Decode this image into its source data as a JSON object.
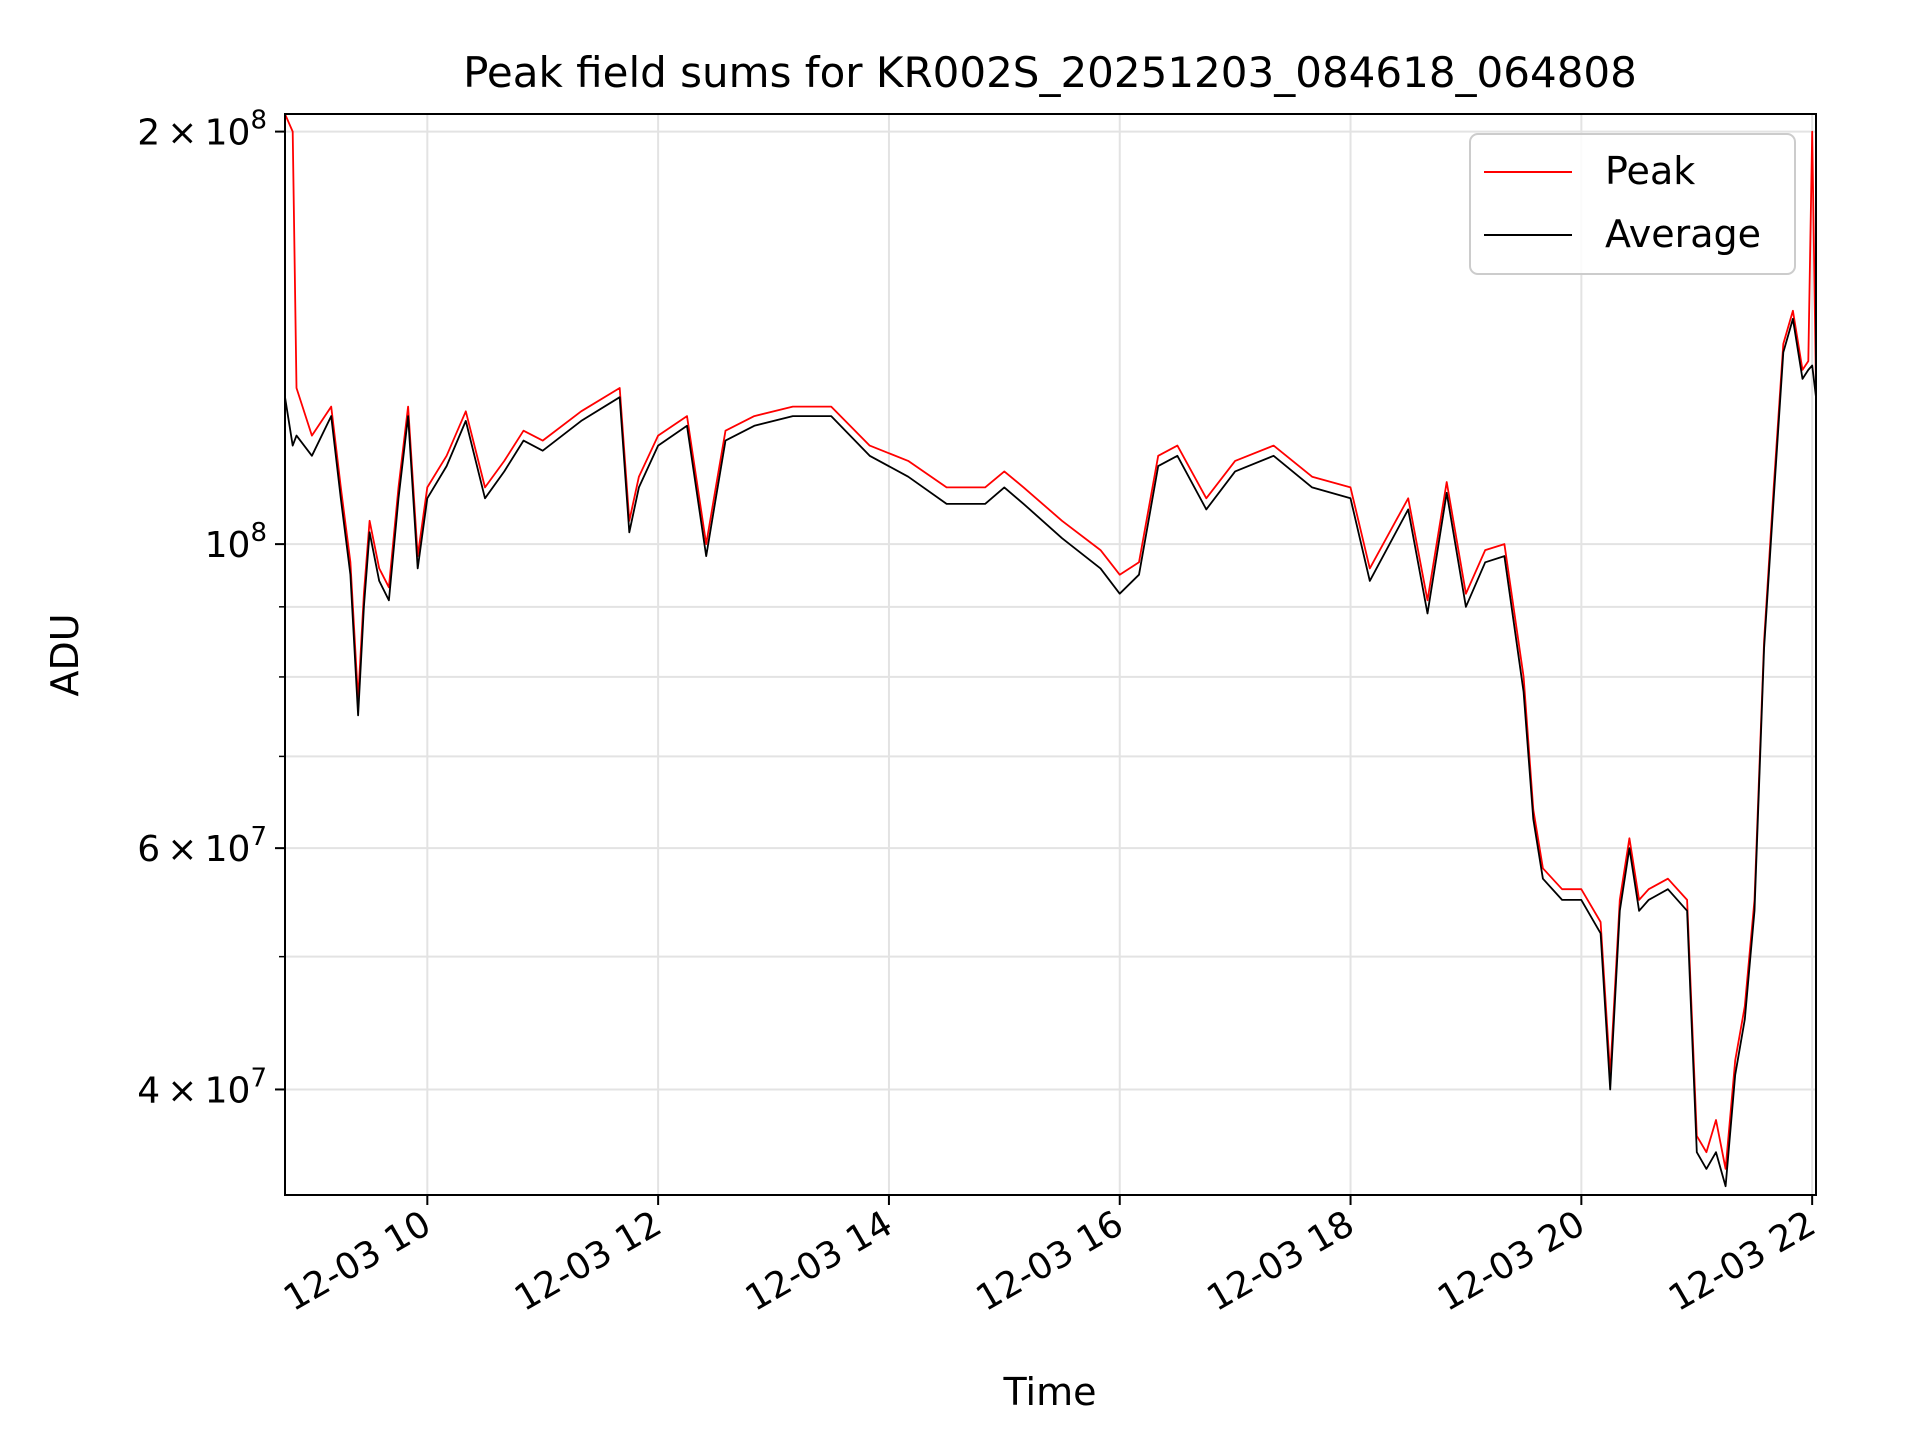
{
  "chart_data": {
    "type": "line",
    "title": "Peak field sums for KR002S_20251203_084618_064808",
    "xlabel": "Time",
    "ylabel": "ADU",
    "yscale": "log",
    "xlim": [
      "2025-12-03 08:46",
      "2025-12-03 22:02"
    ],
    "ylim": [
      33500000,
      206000000
    ],
    "grid": true,
    "legend_position": "upper right",
    "x_ticks": [
      {
        "t": "2025-12-03 10:00",
        "label": "12-03 10"
      },
      {
        "t": "2025-12-03 12:00",
        "label": "12-03 12"
      },
      {
        "t": "2025-12-03 14:00",
        "label": "12-03 14"
      },
      {
        "t": "2025-12-03 16:00",
        "label": "12-03 16"
      },
      {
        "t": "2025-12-03 18:00",
        "label": "12-03 18"
      },
      {
        "t": "2025-12-03 20:00",
        "label": "12-03 20"
      },
      {
        "t": "2025-12-03 22:00",
        "label": "12-03 22"
      }
    ],
    "y_ticks_major": [
      {
        "value": 40000000,
        "mantissa": "4",
        "exponent": "7"
      },
      {
        "value": 60000000,
        "mantissa": "6",
        "exponent": "7"
      },
      {
        "value": 100000000,
        "mantissa": "",
        "exponent": "8"
      },
      {
        "value": 200000000,
        "mantissa": "2",
        "exponent": "8"
      }
    ],
    "y_ticks_minor": [
      50000000,
      70000000,
      80000000,
      90000000
    ],
    "series": [
      {
        "name": "Peak",
        "color": "#ff0000",
        "x": [
          "2025-12-03 08:46",
          "2025-12-03 08:50",
          "2025-12-03 08:52",
          "2025-12-03 09:00",
          "2025-12-03 09:10",
          "2025-12-03 09:15",
          "2025-12-03 09:20",
          "2025-12-03 09:24",
          "2025-12-03 09:27",
          "2025-12-03 09:30",
          "2025-12-03 09:35",
          "2025-12-03 09:40",
          "2025-12-03 09:45",
          "2025-12-03 09:50",
          "2025-12-03 09:55",
          "2025-12-03 10:00",
          "2025-12-03 10:10",
          "2025-12-03 10:20",
          "2025-12-03 10:30",
          "2025-12-03 10:40",
          "2025-12-03 10:50",
          "2025-12-03 11:00",
          "2025-12-03 11:20",
          "2025-12-03 11:40",
          "2025-12-03 11:45",
          "2025-12-03 11:50",
          "2025-12-03 12:00",
          "2025-12-03 12:15",
          "2025-12-03 12:25",
          "2025-12-03 12:30",
          "2025-12-03 12:35",
          "2025-12-03 12:50",
          "2025-12-03 13:10",
          "2025-12-03 13:30",
          "2025-12-03 13:50",
          "2025-12-03 14:10",
          "2025-12-03 14:30",
          "2025-12-03 14:50",
          "2025-12-03 15:00",
          "2025-12-03 15:10",
          "2025-12-03 15:30",
          "2025-12-03 15:50",
          "2025-12-03 16:00",
          "2025-12-03 16:10",
          "2025-12-03 16:20",
          "2025-12-03 16:30",
          "2025-12-03 16:45",
          "2025-12-03 17:00",
          "2025-12-03 17:20",
          "2025-12-03 17:40",
          "2025-12-03 18:00",
          "2025-12-03 18:10",
          "2025-12-03 18:30",
          "2025-12-03 18:40",
          "2025-12-03 18:50",
          "2025-12-03 19:00",
          "2025-12-03 19:10",
          "2025-12-03 19:20",
          "2025-12-03 19:30",
          "2025-12-03 19:35",
          "2025-12-03 19:40",
          "2025-12-03 19:50",
          "2025-12-03 20:00",
          "2025-12-03 20:10",
          "2025-12-03 20:15",
          "2025-12-03 20:20",
          "2025-12-03 20:25",
          "2025-12-03 20:30",
          "2025-12-03 20:35",
          "2025-12-03 20:45",
          "2025-12-03 20:55",
          "2025-12-03 21:00",
          "2025-12-03 21:05",
          "2025-12-03 21:10",
          "2025-12-03 21:15",
          "2025-12-03 21:20",
          "2025-12-03 21:25",
          "2025-12-03 21:30",
          "2025-12-03 21:35",
          "2025-12-03 21:40",
          "2025-12-03 21:45",
          "2025-12-03 21:50",
          "2025-12-03 21:55",
          "2025-12-03 21:58",
          "2025-12-03 22:00",
          "2025-12-03 22:02"
        ],
        "y": [
          206000000,
          200000000,
          130000000,
          120000000,
          126000000,
          110000000,
          97000000,
          77000000,
          92000000,
          104000000,
          96000000,
          93000000,
          110000000,
          126000000,
          98000000,
          110000000,
          116000000,
          125000000,
          110000000,
          115000000,
          121000000,
          119000000,
          125000000,
          130000000,
          104000000,
          112000000,
          120000000,
          124000000,
          100000000,
          110000000,
          121000000,
          124000000,
          126000000,
          126000000,
          118000000,
          115000000,
          110000000,
          110000000,
          113000000,
          110000000,
          104000000,
          99000000,
          95000000,
          97000000,
          116000000,
          118000000,
          108000000,
          115000000,
          118000000,
          112000000,
          110000000,
          96000000,
          108000000,
          91000000,
          111000000,
          92000000,
          99000000,
          100000000,
          80000000,
          64000000,
          58000000,
          56000000,
          56000000,
          53000000,
          41000000,
          55000000,
          61000000,
          55000000,
          56000000,
          57000000,
          55000000,
          37000000,
          36000000,
          38000000,
          35000000,
          42000000,
          46000000,
          55000000,
          85000000,
          110000000,
          140000000,
          148000000,
          134000000,
          136000000,
          200000000,
          130000000
        ]
      },
      {
        "name": "Average",
        "color": "#000000",
        "x": [
          "2025-12-03 08:46",
          "2025-12-03 08:50",
          "2025-12-03 08:52",
          "2025-12-03 09:00",
          "2025-12-03 09:10",
          "2025-12-03 09:15",
          "2025-12-03 09:20",
          "2025-12-03 09:24",
          "2025-12-03 09:27",
          "2025-12-03 09:30",
          "2025-12-03 09:35",
          "2025-12-03 09:40",
          "2025-12-03 09:45",
          "2025-12-03 09:50",
          "2025-12-03 09:55",
          "2025-12-03 10:00",
          "2025-12-03 10:10",
          "2025-12-03 10:20",
          "2025-12-03 10:30",
          "2025-12-03 10:40",
          "2025-12-03 10:50",
          "2025-12-03 11:00",
          "2025-12-03 11:20",
          "2025-12-03 11:40",
          "2025-12-03 11:45",
          "2025-12-03 11:50",
          "2025-12-03 12:00",
          "2025-12-03 12:15",
          "2025-12-03 12:25",
          "2025-12-03 12:30",
          "2025-12-03 12:35",
          "2025-12-03 12:50",
          "2025-12-03 13:10",
          "2025-12-03 13:30",
          "2025-12-03 13:50",
          "2025-12-03 14:10",
          "2025-12-03 14:30",
          "2025-12-03 14:50",
          "2025-12-03 15:00",
          "2025-12-03 15:10",
          "2025-12-03 15:30",
          "2025-12-03 15:50",
          "2025-12-03 16:00",
          "2025-12-03 16:10",
          "2025-12-03 16:20",
          "2025-12-03 16:30",
          "2025-12-03 16:45",
          "2025-12-03 17:00",
          "2025-12-03 17:20",
          "2025-12-03 17:40",
          "2025-12-03 18:00",
          "2025-12-03 18:10",
          "2025-12-03 18:30",
          "2025-12-03 18:40",
          "2025-12-03 18:50",
          "2025-12-03 19:00",
          "2025-12-03 19:10",
          "2025-12-03 19:20",
          "2025-12-03 19:30",
          "2025-12-03 19:35",
          "2025-12-03 19:40",
          "2025-12-03 19:50",
          "2025-12-03 20:00",
          "2025-12-03 20:10",
          "2025-12-03 20:15",
          "2025-12-03 20:20",
          "2025-12-03 20:25",
          "2025-12-03 20:30",
          "2025-12-03 20:35",
          "2025-12-03 20:45",
          "2025-12-03 20:55",
          "2025-12-03 21:00",
          "2025-12-03 21:05",
          "2025-12-03 21:10",
          "2025-12-03 21:15",
          "2025-12-03 21:20",
          "2025-12-03 21:25",
          "2025-12-03 21:30",
          "2025-12-03 21:35",
          "2025-12-03 21:40",
          "2025-12-03 21:45",
          "2025-12-03 21:50",
          "2025-12-03 21:55",
          "2025-12-03 21:58",
          "2025-12-03 22:00",
          "2025-12-03 22:02"
        ],
        "y": [
          128000000,
          118000000,
          120000000,
          116000000,
          124000000,
          108000000,
          95000000,
          75000000,
          90000000,
          102000000,
          94000000,
          91000000,
          108000000,
          124000000,
          96000000,
          108000000,
          114000000,
          123000000,
          108000000,
          113000000,
          119000000,
          117000000,
          123000000,
          128000000,
          102000000,
          110000000,
          118000000,
          122000000,
          98000000,
          108000000,
          119000000,
          122000000,
          124000000,
          124000000,
          116000000,
          112000000,
          107000000,
          107000000,
          110000000,
          107000000,
          101000000,
          96000000,
          92000000,
          95000000,
          114000000,
          116000000,
          106000000,
          113000000,
          116000000,
          110000000,
          108000000,
          94000000,
          106000000,
          89000000,
          109000000,
          90000000,
          97000000,
          98000000,
          78000000,
          63000000,
          57000000,
          55000000,
          55000000,
          52000000,
          40000000,
          54000000,
          60000000,
          54000000,
          55000000,
          56000000,
          54000000,
          36000000,
          35000000,
          36000000,
          34000000,
          41000000,
          45000000,
          54000000,
          84000000,
          108000000,
          138000000,
          146000000,
          132000000,
          134000000,
          135000000,
          128000000
        ]
      }
    ]
  }
}
